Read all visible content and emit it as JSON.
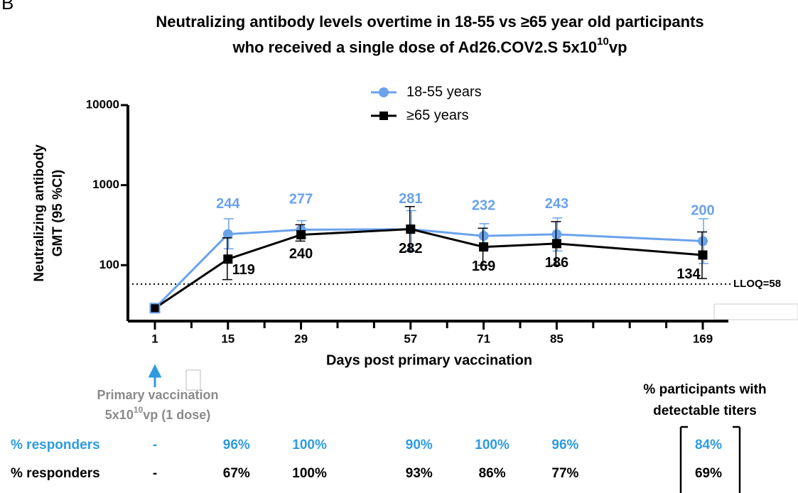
{
  "chart_data": {
    "type": "line",
    "panel_label": "B",
    "title": "Neutralizing antibody levels overtime in 18-55 vs ≥65 year old participants",
    "title_line2": {
      "text": "who received a single dose of Ad26.COV2.S 5x10",
      "sup": "10",
      "end": "vp"
    },
    "x_label": "Days post primary vaccination",
    "y_label": [
      "Neutralizing antibody",
      "GMT (95 %CI)"
    ],
    "categories": [
      "1",
      "15",
      "29",
      "57",
      "71",
      "85",
      "169"
    ],
    "log_y": true,
    "ylim": [
      20,
      10000
    ],
    "yticks": [
      100,
      1000,
      10000
    ],
    "series": [
      {
        "name": "18-55 years",
        "color": "#6aa2ec",
        "marker": "circle",
        "values": [
          29,
          244,
          277,
          281,
          232,
          243,
          200
        ],
        "error_low": [
          null,
          160,
          220,
          150,
          160,
          150,
          105
        ],
        "error_high": [
          null,
          380,
          360,
          480,
          330,
          390,
          380
        ]
      },
      {
        "name": "≥65 years",
        "color": "#000000",
        "marker": "square",
        "values": [
          29,
          119,
          240,
          282,
          169,
          186,
          134
        ],
        "error_low": [
          null,
          66,
          200,
          150,
          100,
          100,
          68
        ],
        "error_high": [
          null,
          220,
          320,
          540,
          290,
          350,
          260
        ]
      }
    ],
    "lloq": {
      "value": 58,
      "label": "LLOQ=58"
    },
    "annotation": {
      "line1": "Primary  vaccination",
      "line2_start": "5x10",
      "line2_sup": "10",
      "line2_end": "vp (1 dose)"
    },
    "table_header": [
      "% participants with",
      "detectable titers"
    ],
    "table_rows": [
      {
        "label": "% responders",
        "color": "#2e9be0",
        "cells": [
          "-",
          "96%",
          "100%",
          "90%",
          "100%",
          "96%",
          "84%"
        ]
      },
      {
        "label": "% responders",
        "color": "#000000",
        "cells": [
          "-",
          "67%",
          "100%",
          "93%",
          "86%",
          "77%",
          "69%"
        ]
      }
    ]
  }
}
